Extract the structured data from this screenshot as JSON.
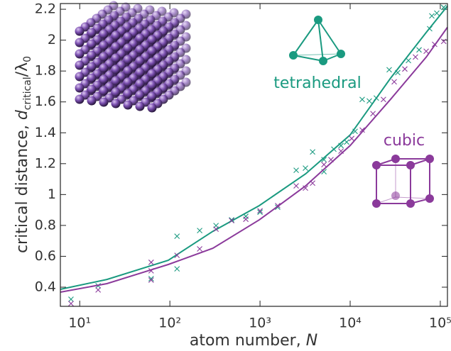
{
  "chart_data": {
    "type": "scatter",
    "x_label": [
      "atom number, ",
      "N"
    ],
    "y_label": [
      "critical distance, ",
      "d",
      "critical",
      "/λ",
      "0"
    ],
    "xlog": true,
    "xlim": [
      6.1,
      120000
    ],
    "ylim": [
      0.276,
      2.237
    ],
    "xticks": [
      {
        "value": 10,
        "label": "10¹"
      },
      {
        "value": 100,
        "label": "10²"
      },
      {
        "value": 1000,
        "label": "10³"
      },
      {
        "value": 10000,
        "label": "10⁴"
      },
      {
        "value": 100000,
        "label": "10⁵"
      }
    ],
    "yticks": [
      0.4,
      0.6,
      0.8,
      1,
      1.2,
      1.4,
      1.6,
      1.8,
      2,
      2.2
    ],
    "series": [
      {
        "name": "tetrahedral",
        "color": "#1a9a80",
        "x": [
          8,
          16,
          62,
          120,
          120,
          214,
          325,
          484,
          696,
          1000,
          1570,
          2520,
          3190,
          3830,
          5120,
          5120,
          6590,
          7910,
          9140,
          11350,
          13600,
          16300,
          19500,
          27100,
          33700,
          44300,
          58100,
          76200,
          80500,
          91400,
          109000
        ],
        "values": [
          0.322,
          0.409,
          0.455,
          0.73,
          0.519,
          0.767,
          0.799,
          0.836,
          0.859,
          0.886,
          0.918,
          1.157,
          1.171,
          1.276,
          1.148,
          1.226,
          1.294,
          1.317,
          1.34,
          1.409,
          1.616,
          1.606,
          1.625,
          1.808,
          1.79,
          1.868,
          1.937,
          2.074,
          2.157,
          2.175,
          2.212
        ],
        "fit": {
          "x": [
            6.1,
            20,
            96,
            300,
            980,
            3200,
            10000,
            28000,
            70000,
            120000
          ],
          "values": [
            0.386,
            0.45,
            0.574,
            0.762,
            0.928,
            1.134,
            1.386,
            1.753,
            2.051,
            2.221
          ]
        }
      },
      {
        "name": "cubic",
        "color": "#8b3a9b",
        "x": [
          8,
          16,
          62,
          62,
          62,
          120,
          214,
          325,
          484,
          696,
          1000,
          1570,
          2520,
          3190,
          3830,
          5120,
          6120,
          7910,
          10400,
          13600,
          17900,
          23400,
          30800,
          40400,
          53000,
          69700,
          86500,
          109000
        ],
        "values": [
          0.294,
          0.382,
          0.561,
          0.506,
          0.446,
          0.606,
          0.648,
          0.776,
          0.831,
          0.84,
          0.895,
          0.928,
          1.056,
          1.042,
          1.074,
          1.194,
          1.226,
          1.281,
          1.363,
          1.418,
          1.524,
          1.616,
          1.73,
          1.813,
          1.891,
          1.928,
          1.973,
          1.992
        ],
        "fit": {
          "x": [
            6.1,
            20,
            96,
            300,
            980,
            3200,
            10000,
            28000,
            70000,
            120000
          ],
          "values": [
            0.368,
            0.423,
            0.547,
            0.652,
            0.836,
            1.056,
            1.317,
            1.616,
            1.891,
            2.083
          ]
        }
      }
    ]
  }
}
